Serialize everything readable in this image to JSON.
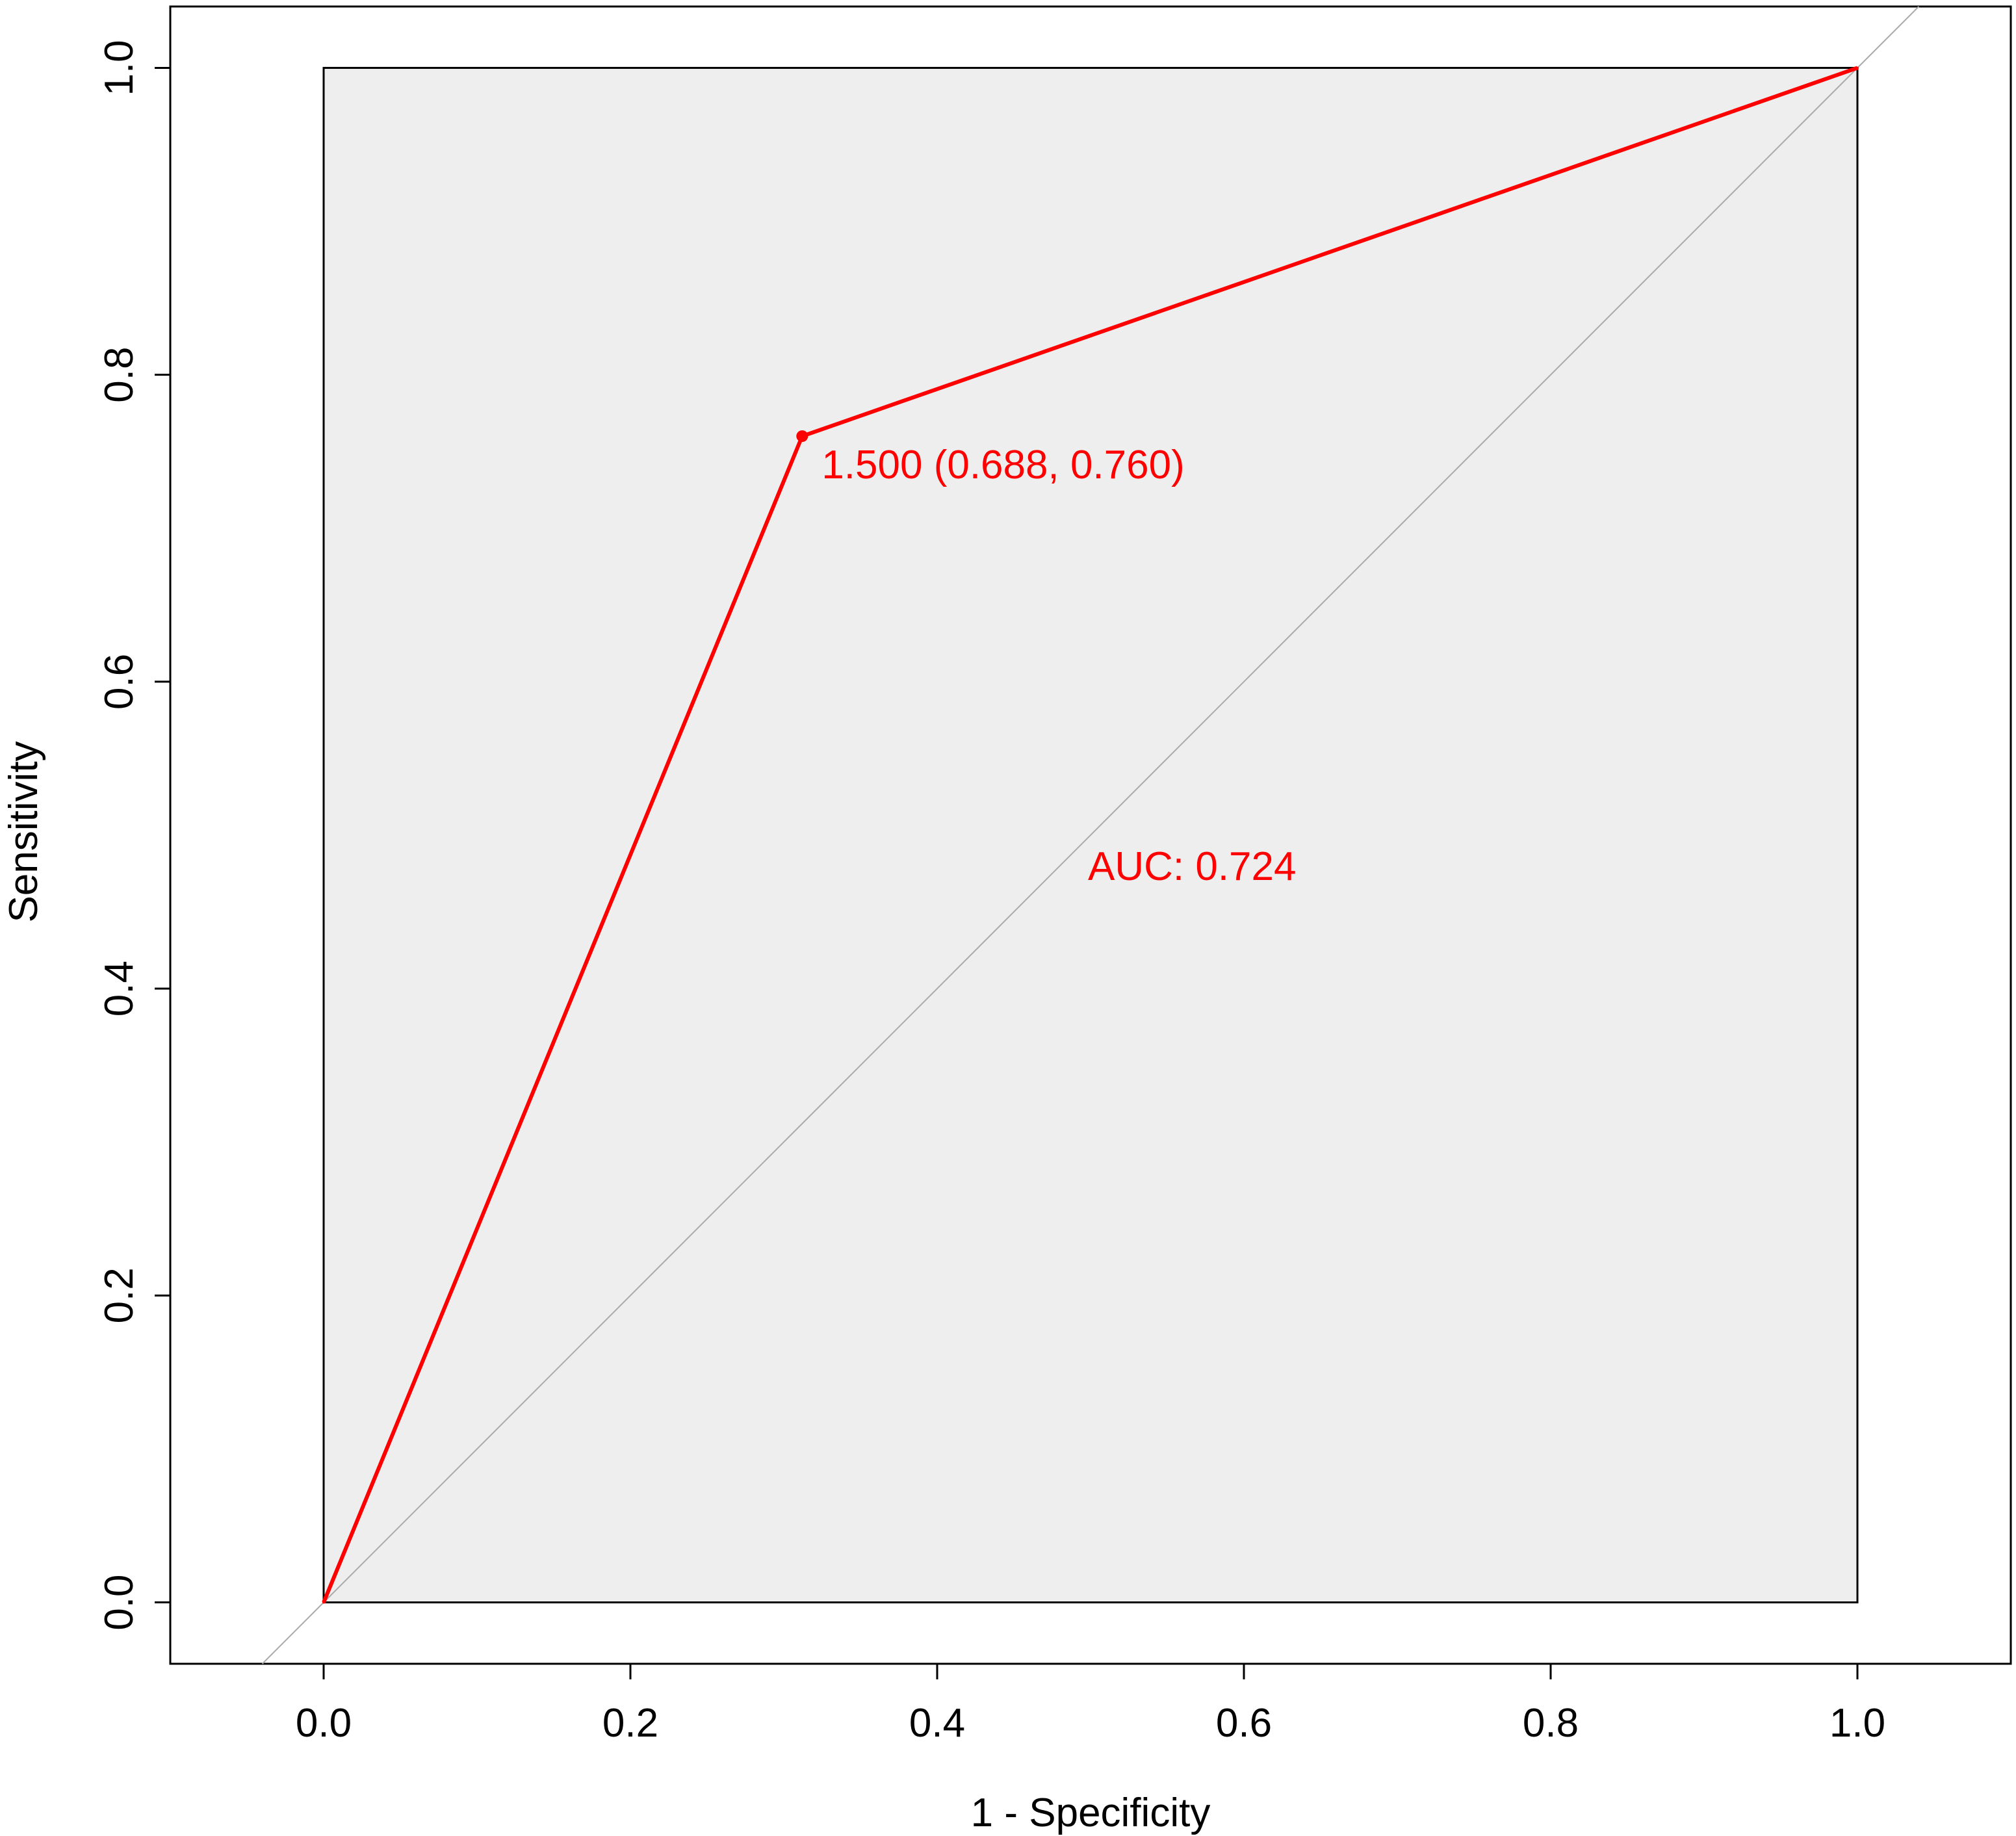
{
  "chart_data": {
    "type": "line",
    "title": "",
    "xlabel": "1 - Specificity",
    "ylabel": "Sensitivity",
    "xlim": [
      -0.1,
      1.1
    ],
    "ylim": [
      -0.04,
      1.04
    ],
    "xticks": [
      0.0,
      0.2,
      0.4,
      0.6,
      0.8,
      1.0
    ],
    "yticks": [
      0.0,
      0.2,
      0.4,
      0.6,
      0.8,
      1.0
    ],
    "xtick_labels": [
      "0.0",
      "0.2",
      "0.4",
      "0.6",
      "0.8",
      "1.0"
    ],
    "ytick_labels": [
      "0.0",
      "0.2",
      "0.4",
      "0.6",
      "0.8",
      "1.0"
    ],
    "grid": false,
    "legend": "none",
    "auc_region": {
      "x": [
        0,
        1
      ],
      "y": [
        0,
        1
      ],
      "color": "#eeeeee"
    },
    "reference_line": {
      "slope": 1,
      "intercept": 0,
      "color": "#aaaaaa"
    },
    "series": [
      {
        "color": "#ff0000",
        "x": [
          0.0,
          0.312,
          1.0
        ],
        "y": [
          0.0,
          0.76,
          1.0
        ]
      }
    ],
    "threshold_point": {
      "x": 0.312,
      "y": 0.76,
      "label": "1.500 (0.688, 0.760)"
    },
    "annotations": [
      {
        "text": "AUC: 0.724",
        "x": 0.5,
        "y": 0.48,
        "color": "#ff0000"
      }
    ]
  }
}
